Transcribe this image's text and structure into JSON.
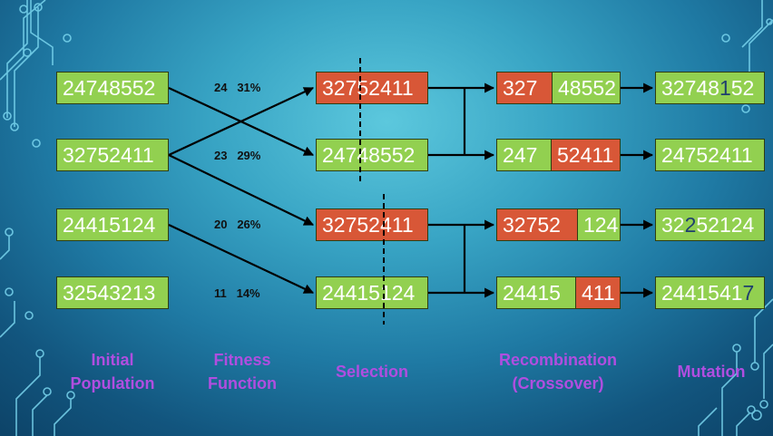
{
  "initial_population": [
    "24748552",
    "32752411",
    "24415124",
    "32543213"
  ],
  "fitness": [
    {
      "score": "24",
      "percent": "31%"
    },
    {
      "score": "23",
      "percent": "29%"
    },
    {
      "score": "20",
      "percent": "26%"
    },
    {
      "score": "11",
      "percent": "14%"
    }
  ],
  "selection": [
    "32752411",
    "24748552",
    "32752411",
    "24415124"
  ],
  "crossover": [
    {
      "left": "327",
      "right": "48552"
    },
    {
      "left": "247",
      "right": "52411"
    },
    {
      "left": "32752",
      "right": "124"
    },
    {
      "left": "24415",
      "right": "411"
    }
  ],
  "mutation": [
    {
      "before": "32748",
      "mutated": "1",
      "after": "52"
    },
    {
      "before": "24752411",
      "mutated": "",
      "after": ""
    },
    {
      "before": "32",
      "mutated": "2",
      "after": "52124"
    },
    {
      "before": "2441541",
      "mutated": "7",
      "after": ""
    }
  ],
  "labels": {
    "initial_population": [
      "Initial",
      "Population"
    ],
    "fitness_function": [
      "Fitness",
      "Function"
    ],
    "selection": [
      "Selection"
    ],
    "recombination": [
      "Recombination",
      "(Crossover)"
    ],
    "mutation": [
      "Mutation"
    ]
  },
  "colors": {
    "parent_box": "#92d050",
    "selected_box": "#d85737",
    "label_text": "#b04ee0",
    "mutated_digit": "#1f3f6e"
  }
}
